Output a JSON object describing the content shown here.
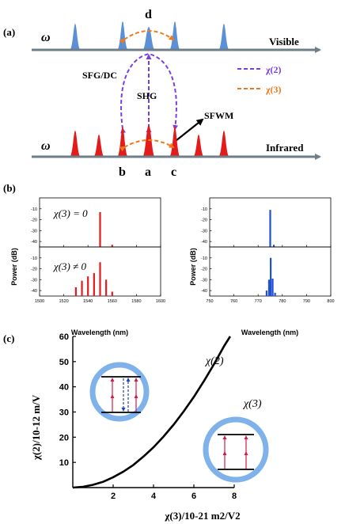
{
  "panel_a": {
    "label": "(a)",
    "omega_top": "ω",
    "omega_bottom": "ω",
    "axis_top": "Visible",
    "axis_bottom": "Infrared",
    "point_d": "d",
    "point_a": "a",
    "point_b": "b",
    "point_c": "c",
    "sfg_dc": "SFG/DC",
    "shg": "SHG",
    "sfwm": "SFWM",
    "legend_chi2": "χ(2)",
    "legend_chi3": "χ(3)",
    "colors": {
      "visible": "#5b8fd6",
      "infrared": "#e31b1b",
      "chi2": "#7a3fe0",
      "chi3": "#f07a1a",
      "axis": "#6e7f8a"
    }
  },
  "panel_b": {
    "label": "(b)",
    "ylabel": "Power (dB)",
    "xlabel": "Wavelength (nm)",
    "ann_top": "χ(3) = 0",
    "ann_bottom": "χ(3) ≠ 0"
  },
  "panel_c": {
    "label": "(c)",
    "ylabel": "χ(2)/10-12 m/V",
    "xlabel": "χ(3)/10-21 m2/V2",
    "curve_label_chi2": "χ(2)",
    "curve_label_chi3": "χ(3)"
  },
  "chart_data": [
    {
      "type": "bar",
      "panel": "b-left-top",
      "xlim": [
        1500,
        1600
      ],
      "ylim": [
        -45,
        0
      ],
      "xticks": [
        1500,
        1520,
        1540,
        1560,
        1580,
        1600
      ],
      "yticks": [
        -10,
        -20,
        -30,
        -40
      ],
      "x": [
        1550,
        1560
      ],
      "values": [
        -13,
        -43
      ],
      "color": "#e31b1b"
    },
    {
      "type": "bar",
      "panel": "b-left-bottom",
      "xlim": [
        1500,
        1600
      ],
      "ylim": [
        -45,
        0
      ],
      "xticks": [
        1500,
        1520,
        1540,
        1560,
        1580,
        1600
      ],
      "yticks": [
        -10,
        -20,
        -30,
        -40
      ],
      "x": [
        1530,
        1535,
        1540,
        1545,
        1550,
        1555,
        1560
      ],
      "values": [
        -37,
        -31,
        -27,
        -24,
        -14,
        -30,
        -41
      ],
      "color": "#e31b1b"
    },
    {
      "type": "bar",
      "panel": "b-right-top",
      "xlim": [
        750,
        800
      ],
      "ylim": [
        -45,
        0
      ],
      "xticks": [
        750,
        760,
        770,
        780,
        790,
        800
      ],
      "yticks": [
        -10,
        -20,
        -30,
        -40
      ],
      "x": [
        775,
        776.5
      ],
      "values": [
        -11,
        -43
      ],
      "color": "#1e4fd6"
    },
    {
      "type": "bar",
      "panel": "b-right-bottom",
      "xlim": [
        750,
        800
      ],
      "ylim": [
        -45,
        0
      ],
      "xticks": [
        750,
        760,
        770,
        780,
        790,
        800
      ],
      "yticks": [
        -10,
        -20,
        -30,
        -40
      ],
      "x": [
        773.5,
        774.5,
        775.2,
        776,
        777
      ],
      "values": [
        -40,
        -30,
        -10,
        -29,
        -42
      ],
      "color": "#1e4fd6"
    },
    {
      "type": "line",
      "panel": "c",
      "xlim": [
        0,
        8
      ],
      "ylim": [
        0,
        60
      ],
      "xticks": [
        2,
        4,
        6,
        8
      ],
      "yticks": [
        10,
        20,
        30,
        40,
        50,
        60
      ],
      "x": [
        0,
        0.5,
        1,
        1.5,
        2,
        2.5,
        3,
        3.5,
        4,
        4.5,
        5,
        5.5,
        6,
        6.5,
        7,
        7.5,
        7.8
      ],
      "values": [
        0,
        0.3,
        1.1,
        2.3,
        4.1,
        6.3,
        9,
        12.3,
        16,
        20.3,
        25,
        30.3,
        36,
        42.3,
        49,
        56.2,
        60
      ],
      "color": "#000000"
    }
  ]
}
